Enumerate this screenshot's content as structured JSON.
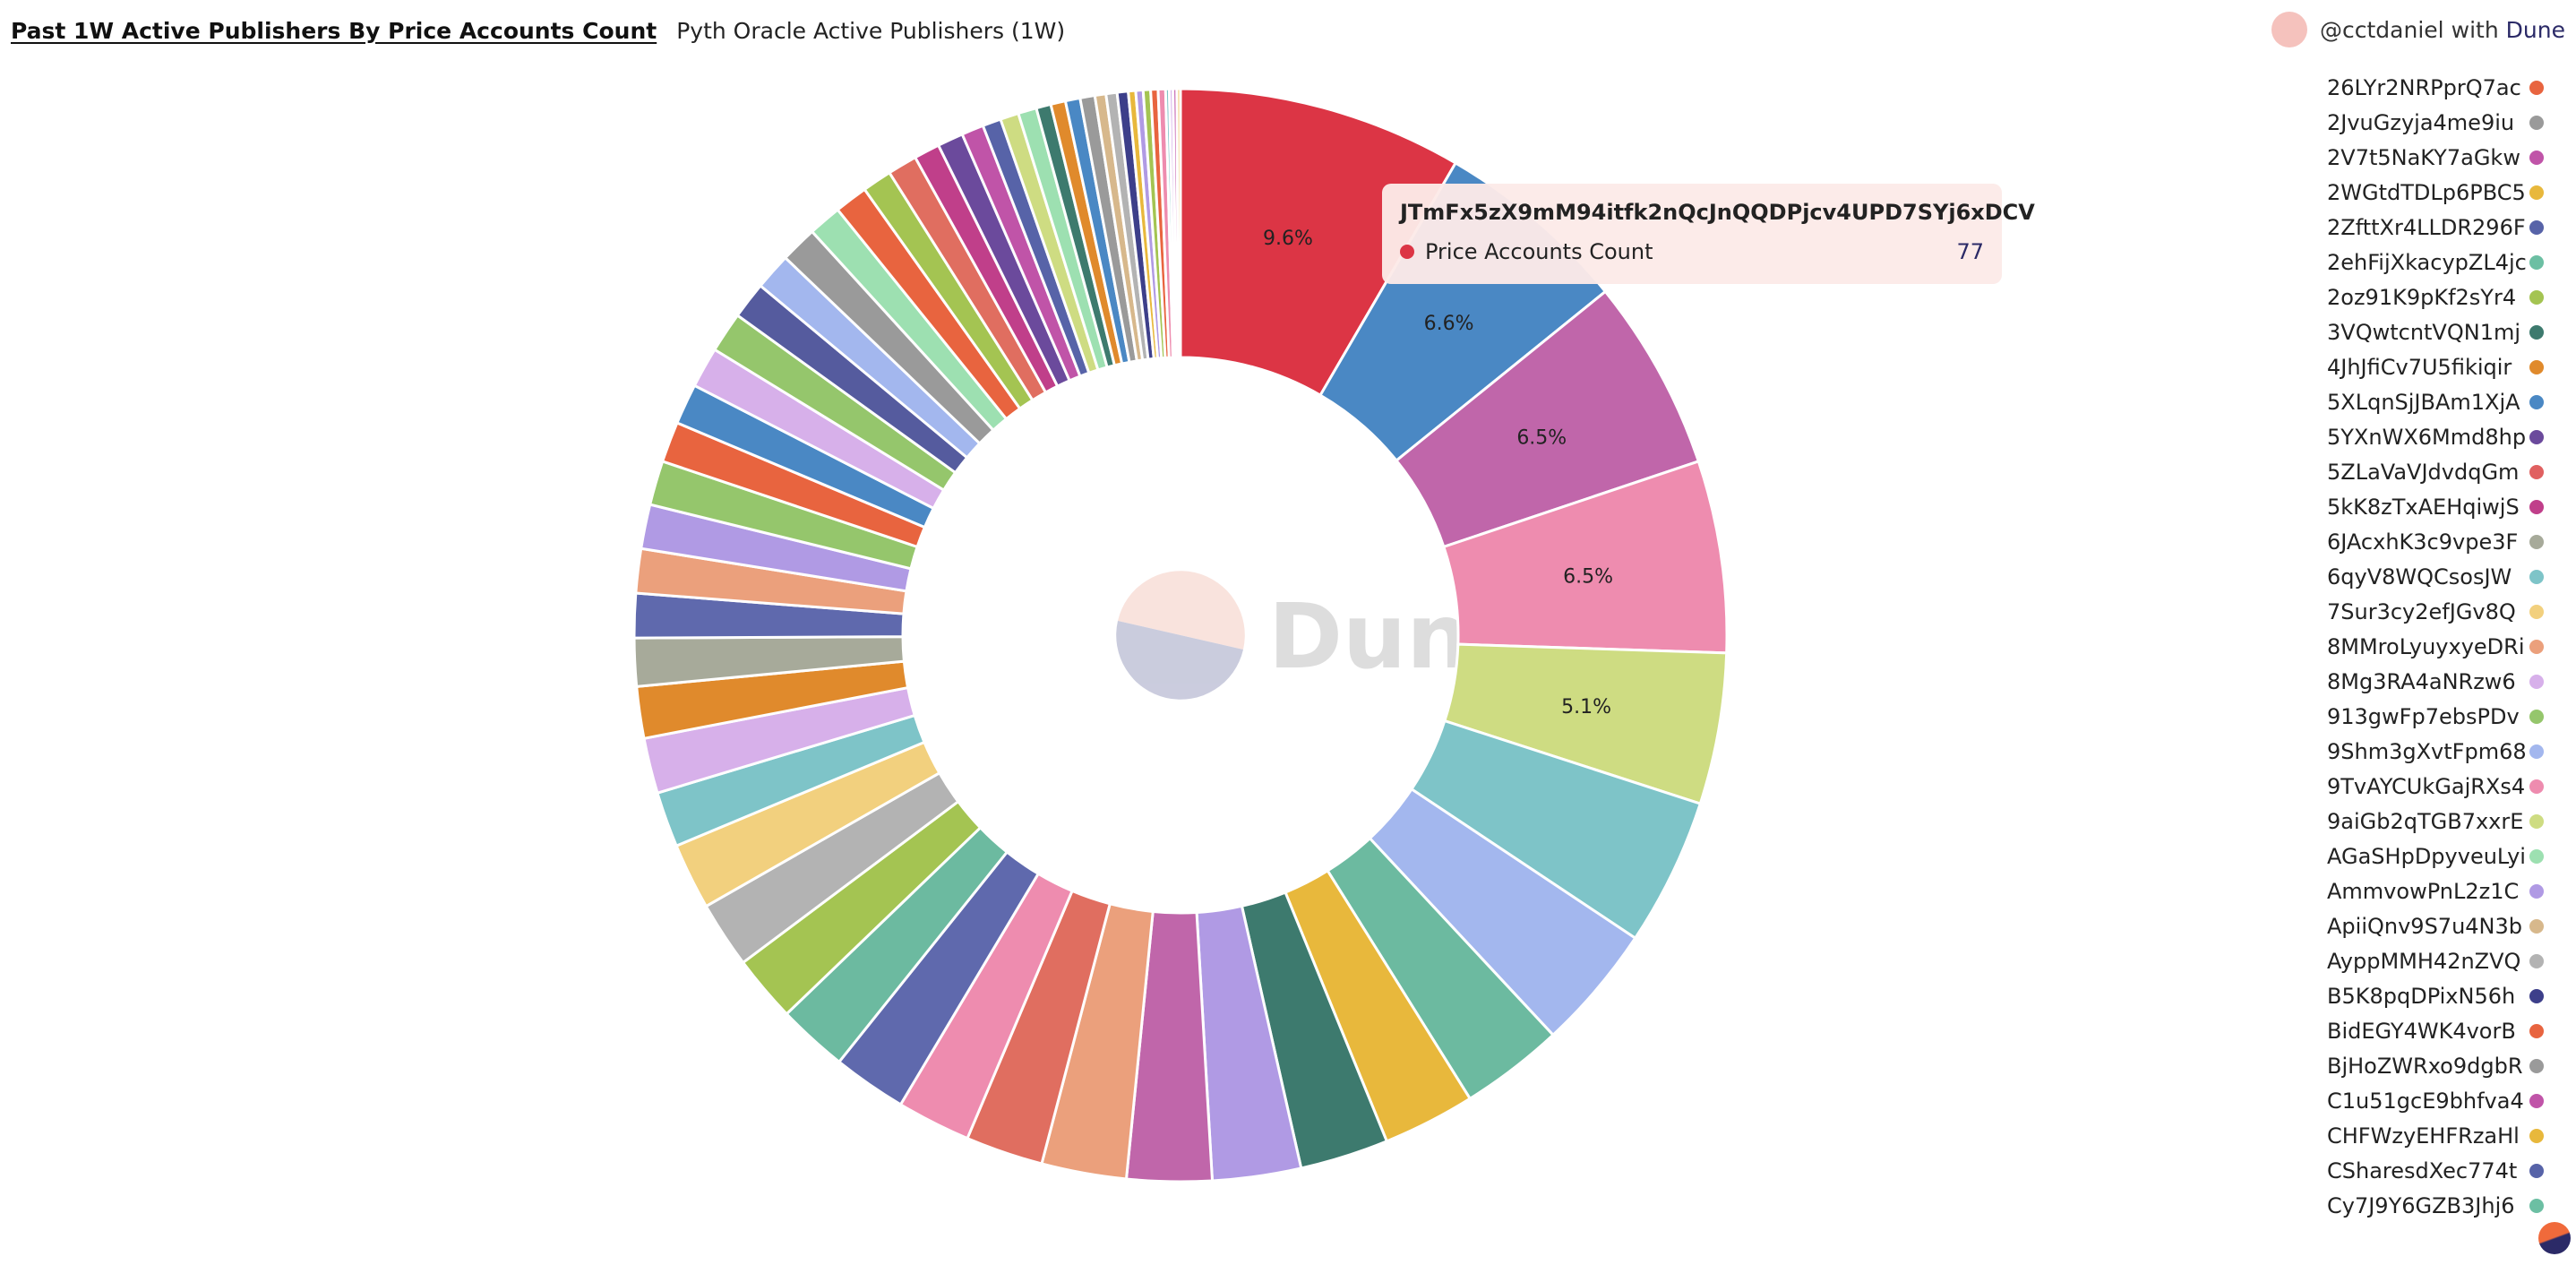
{
  "header": {
    "title": "Past 1W Active Publishers By Price Accounts Count",
    "subtitle": "Pyth Oracle Active Publishers (1W)"
  },
  "attribution": {
    "user": "@cctdaniel",
    "with": "with",
    "brand": "Dune"
  },
  "watermark": "Dune",
  "tooltip": {
    "title": "JTmFx5zX9mM94itfk2nQcJnQQDPjcv4UPD7SYj6xDCV",
    "metric": "Price Accounts Count",
    "value": "77",
    "color": "#dc3545"
  },
  "legend": [
    {
      "label": "26LYr2NRPprQ7ac",
      "color": "#e8643f"
    },
    {
      "label": "2JvuGzyja4me9iu",
      "color": "#9a9a9a"
    },
    {
      "label": "2V7t5NaKY7aGkw",
      "color": "#c054a8"
    },
    {
      "label": "2WGtdTDLp6PBC5",
      "color": "#e8b83c"
    },
    {
      "label": "2ZfttXr4LLDR296F",
      "color": "#5763a8"
    },
    {
      "label": "2ehFijXkacypZL4jc",
      "color": "#6cbfa3"
    },
    {
      "label": "2oz91K9pKf2sYr4",
      "color": "#a4c452"
    },
    {
      "label": "3VQwtcntVQN1mj",
      "color": "#3d7a6e"
    },
    {
      "label": "4JhJfiCv7U5fikiqir",
      "color": "#e08a2c"
    },
    {
      "label": "5XLqnSjJBAm1XjA",
      "color": "#4a88c4"
    },
    {
      "label": "5YXnWX6Mmd8hp",
      "color": "#6b4a9c"
    },
    {
      "label": "5ZLaVaVJdvdqGm",
      "color": "#e06060"
    },
    {
      "label": "5kK8zTxAEHqiwjS",
      "color": "#c03f8a"
    },
    {
      "label": "6JAcxhK3c9vpe3F",
      "color": "#a7aa9a"
    },
    {
      "label": "6qyV8WQCsosJW",
      "color": "#7ec4c8"
    },
    {
      "label": "7Sur3cy2efJGv8Q",
      "color": "#f2d07e"
    },
    {
      "label": "8MMroLyuyxyeDRi",
      "color": "#eba07c"
    },
    {
      "label": "8Mg3RA4aNRzw6",
      "color": "#d7b0ea"
    },
    {
      "label": "913gwFp7ebsPDv",
      "color": "#95c66c"
    },
    {
      "label": "9Shm3gXvtFpm68",
      "color": "#a3b7ee"
    },
    {
      "label": "9TvAYCUkGajRXs4",
      "color": "#ee8caf"
    },
    {
      "label": "9aiGb2qTGB7xxrE",
      "color": "#cedc82"
    },
    {
      "label": "AGaSHpDpyveuLyi",
      "color": "#9de0b1"
    },
    {
      "label": "AmmvowPnL2z1C",
      "color": "#b09ae4"
    },
    {
      "label": "ApiiQnv9S7u4N3b",
      "color": "#d7b88c"
    },
    {
      "label": "AyppMMH42nZVQ",
      "color": "#b3b3b3"
    },
    {
      "label": "B5K8pqDPixN56h",
      "color": "#3d3f8a"
    },
    {
      "label": "BidEGY4WK4vorB",
      "color": "#e8643f"
    },
    {
      "label": "BjHoZWRxo9dgbR",
      "color": "#9a9a9a"
    },
    {
      "label": "C1u51gcE9bhfva4",
      "color": "#c054a8"
    },
    {
      "label": "CHFWzyEHFRzaHl",
      "color": "#e8b83c"
    },
    {
      "label": "CSharesdXec774t",
      "color": "#5763a8"
    },
    {
      "label": "Cy7J9Y6GZB3Jhj6",
      "color": "#6cbfa3"
    }
  ],
  "chart_data": {
    "type": "pie",
    "title": "Past 1W Active Publishers By Price Accounts Count",
    "subtitle": "Pyth Oracle Active Publishers (1W)",
    "value_label": "Price Accounts Count",
    "donut": true,
    "series": [
      {
        "value": 77,
        "percent_label": "9.6%",
        "color": "#dc3545"
      },
      {
        "value": 53,
        "percent_label": "6.6%",
        "color": "#4a88c4"
      },
      {
        "value": 52,
        "percent_label": "6.5%",
        "color": "#c066aa"
      },
      {
        "value": 52,
        "percent_label": "6.5%",
        "color": "#ee8caf"
      },
      {
        "value": 41,
        "percent_label": "5.1%",
        "color": "#cedc82"
      },
      {
        "value": 40,
        "color": "#7ec4c8"
      },
      {
        "value": 34,
        "color": "#a3b7ee"
      },
      {
        "value": 28,
        "color": "#6cbaa0"
      },
      {
        "value": 25,
        "color": "#e8b83c"
      },
      {
        "value": 24,
        "color": "#3d7a6e"
      },
      {
        "value": 24,
        "color": "#b09ae4"
      },
      {
        "value": 23,
        "color": "#c066aa"
      },
      {
        "value": 23,
        "color": "#eba07c"
      },
      {
        "value": 21,
        "color": "#e06e60"
      },
      {
        "value": 20,
        "color": "#ee8caf"
      },
      {
        "value": 20,
        "color": "#5f69ad"
      },
      {
        "value": 19,
        "color": "#6cbaa0"
      },
      {
        "value": 18,
        "color": "#a4c452"
      },
      {
        "value": 18,
        "color": "#b3b3b3"
      },
      {
        "value": 18,
        "color": "#f2d07e"
      },
      {
        "value": 15,
        "color": "#7ec4c8"
      },
      {
        "value": 15,
        "color": "#d7b0ea"
      },
      {
        "value": 14,
        "color": "#e08a2c"
      },
      {
        "value": 13,
        "color": "#a7aa9a"
      },
      {
        "value": 12,
        "color": "#5f69ad"
      },
      {
        "value": 12,
        "color": "#eba07c"
      },
      {
        "value": 12,
        "color": "#b09ae4"
      },
      {
        "value": 12,
        "color": "#95c66c"
      },
      {
        "value": 11,
        "color": "#e8643f"
      },
      {
        "value": 11,
        "color": "#4a88c4"
      },
      {
        "value": 11,
        "color": "#d7b0ea"
      },
      {
        "value": 11,
        "color": "#95c66c"
      },
      {
        "value": 10,
        "color": "#555b9e"
      },
      {
        "value": 10,
        "color": "#a3b7ee"
      },
      {
        "value": 10,
        "color": "#9a9a9a"
      },
      {
        "value": 9,
        "color": "#9de0b1"
      },
      {
        "value": 9,
        "color": "#e8643f"
      },
      {
        "value": 8,
        "color": "#a4c452"
      },
      {
        "value": 8,
        "color": "#e06e60"
      },
      {
        "value": 7,
        "color": "#c03f8a"
      },
      {
        "value": 7,
        "color": "#6b4a9c"
      },
      {
        "value": 6,
        "color": "#c054a8"
      },
      {
        "value": 5,
        "color": "#5763a8"
      },
      {
        "value": 5,
        "color": "#cedc82"
      },
      {
        "value": 5,
        "color": "#9de0b1"
      },
      {
        "value": 4,
        "color": "#3d7a6e"
      },
      {
        "value": 4,
        "color": "#e08a2c"
      },
      {
        "value": 4,
        "color": "#4a88c4"
      },
      {
        "value": 4,
        "color": "#9a9a9a"
      },
      {
        "value": 3,
        "color": "#d7b88c"
      },
      {
        "value": 3,
        "color": "#b3b3b3"
      },
      {
        "value": 3,
        "color": "#3d3f8a"
      },
      {
        "value": 2,
        "color": "#e8b83c"
      },
      {
        "value": 2,
        "color": "#b09ae4"
      },
      {
        "value": 2,
        "color": "#a4c452"
      },
      {
        "value": 2,
        "color": "#e8643f"
      },
      {
        "value": 2,
        "color": "#ee8caf"
      },
      {
        "value": 1,
        "color": "#7ec4c8"
      },
      {
        "value": 1,
        "color": "#d7b0ea"
      },
      {
        "value": 1,
        "color": "#c054a8"
      },
      {
        "value": 1,
        "color": "#f2d07e"
      }
    ]
  }
}
